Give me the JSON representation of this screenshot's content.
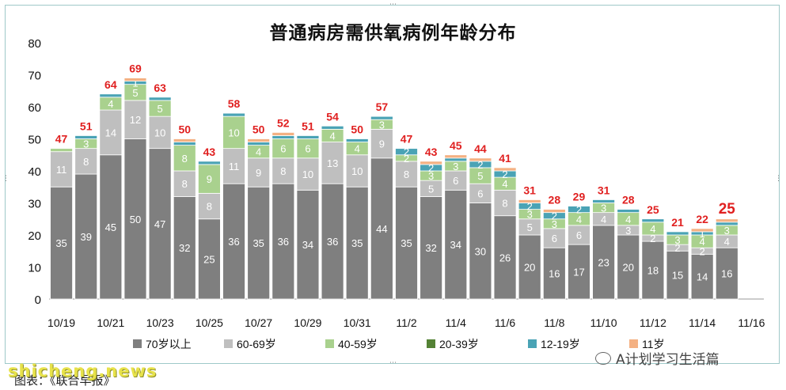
{
  "chart_data": {
    "type": "bar",
    "stacked": true,
    "title": "普通病房需供氧病例年龄分布",
    "categories": [
      "10/19",
      "10/20",
      "10/21",
      "10/22",
      "10/23",
      "10/24",
      "10/25",
      "10/26",
      "10/27",
      "10/28",
      "10/29",
      "10/30",
      "10/31",
      "11/1",
      "11/2",
      "11/3",
      "11/4",
      "11/5",
      "11/6",
      "11/7",
      "11/8",
      "11/9",
      "11/10",
      "11/11",
      "11/12",
      "11/13",
      "11/14",
      "11/15",
      "11/16"
    ],
    "x_tick_labels": [
      "10/19",
      "10/21",
      "10/23",
      "10/25",
      "10/27",
      "10/29",
      "10/31",
      "11/2",
      "11/4",
      "11/6",
      "11/8",
      "11/10",
      "11/12",
      "11/14",
      "11/16"
    ],
    "ylim": [
      0,
      80
    ],
    "yticks": [
      0,
      10,
      20,
      30,
      40,
      50,
      60,
      70,
      80
    ],
    "series": [
      {
        "name": "70岁以上",
        "color": "#7f7f7f",
        "values": [
          35,
          39,
          45,
          50,
          47,
          32,
          25,
          36,
          35,
          36,
          34,
          36,
          35,
          44,
          35,
          32,
          34,
          30,
          26,
          20,
          16,
          17,
          23,
          20,
          18,
          15,
          14,
          16,
          null
        ],
        "labels": [
          "35",
          "39",
          "45",
          "50",
          "47",
          "32",
          "25",
          "36",
          "35",
          "36",
          "34",
          "36",
          "35",
          "44",
          "35",
          "32",
          "34",
          "30",
          "26",
          "20",
          "16",
          "17",
          "23",
          "20",
          "18",
          "15",
          "14",
          "16",
          ""
        ]
      },
      {
        "name": "60-69岁",
        "color": "#bfbfbf",
        "values": [
          11,
          8,
          14,
          12,
          10,
          8,
          8,
          11,
          9,
          8,
          10,
          13,
          10,
          9,
          8,
          5,
          6,
          6,
          8,
          5,
          6,
          6,
          4,
          3,
          2,
          2,
          2,
          4,
          null
        ],
        "labels": [
          "11",
          "8",
          "14",
          "12",
          "10",
          "8",
          "8",
          "11",
          "9",
          "8",
          "10",
          "13",
          "10",
          "9",
          "8",
          "5",
          "6",
          "6",
          "8",
          "5",
          "6",
          "6",
          "4",
          "3",
          "2",
          "2",
          "2",
          "4",
          ""
        ]
      },
      {
        "name": "40-59岁",
        "color": "#a9d18e",
        "values": [
          1,
          3,
          4,
          5,
          5,
          8,
          9,
          10,
          4,
          6,
          6,
          4,
          4,
          3,
          2,
          3,
          3,
          5,
          4,
          3,
          3,
          4,
          3,
          4,
          4,
          3,
          4,
          3,
          null
        ],
        "labels": [
          "",
          "3",
          "4",
          "5",
          "5",
          "8",
          "9",
          "10",
          "4",
          "6",
          "6",
          "4",
          "4",
          "3",
          "2",
          "3",
          "3",
          "5",
          "4",
          "3",
          "3",
          "4",
          "3",
          "4",
          "4",
          "3",
          "4",
          "3",
          ""
        ]
      },
      {
        "name": "20-39岁",
        "color": "#548235",
        "values": [
          0,
          0,
          0,
          0,
          0,
          0,
          0,
          0,
          0,
          0,
          0,
          0,
          0,
          0,
          0,
          0,
          0,
          0,
          0,
          0,
          0,
          0,
          0,
          0,
          0,
          0,
          0,
          0,
          null
        ],
        "labels": [
          "",
          "",
          "",
          "",
          "",
          "",
          "",
          "",
          "",
          "",
          "",
          "",
          "",
          "",
          "",
          "",
          "",
          "",
          "",
          "",
          "",
          "",
          "",
          "",
          "",
          "",
          "",
          "",
          ""
        ]
      },
      {
        "name": "12-19岁",
        "color": "#4aa3b5",
        "values": [
          0,
          1,
          1,
          1,
          1,
          1,
          1,
          1,
          1,
          1,
          1,
          1,
          1,
          1,
          2,
          2,
          1,
          2,
          2,
          2,
          2,
          2,
          1,
          1,
          1,
          1,
          1,
          1,
          null
        ],
        "labels": [
          "",
          "",
          "",
          "1",
          "",
          "",
          "",
          "",
          "",
          "",
          "",
          "",
          "",
          "",
          "2",
          "2",
          "",
          "2",
          "2",
          "2",
          "2",
          "2",
          "",
          "",
          "",
          "",
          "1",
          "",
          ""
        ]
      },
      {
        "name": "11岁",
        "color": "#f4b183",
        "values": [
          0,
          0,
          0,
          1,
          0,
          1,
          0,
          0,
          1,
          1,
          0,
          0,
          0,
          0,
          0,
          1,
          1,
          1,
          1,
          1,
          1,
          0,
          0,
          0,
          0,
          0,
          1,
          1,
          null
        ],
        "labels": [
          "",
          "",
          "",
          "",
          "",
          "",
          "",
          "",
          "",
          "",
          "",
          "",
          "",
          "",
          "",
          "",
          "",
          "",
          "",
          "",
          "",
          "",
          "",
          "",
          "",
          "",
          "",
          "",
          ""
        ]
      }
    ],
    "totals": [
      47,
      51,
      64,
      69,
      63,
      50,
      43,
      58,
      50,
      52,
      51,
      54,
      50,
      57,
      47,
      43,
      45,
      44,
      41,
      31,
      28,
      29,
      31,
      28,
      25,
      21,
      22,
      25,
      null
    ],
    "total_labels": [
      "47",
      "51",
      "64",
      "69",
      "63",
      "50",
      "43",
      "58",
      "50",
      "52",
      "51",
      "54",
      "50",
      "57",
      "47",
      "43",
      "45",
      "44",
      "41",
      "31",
      "28",
      "29",
      "31",
      "28",
      "25",
      "21",
      "22",
      "25",
      ""
    ],
    "total_label_color": "#e02020",
    "legend_position": "bottom"
  },
  "footer": {
    "source": "图表：《联合早报》",
    "watermark": "shicheng.news",
    "account": "A计划学习生活篇"
  }
}
